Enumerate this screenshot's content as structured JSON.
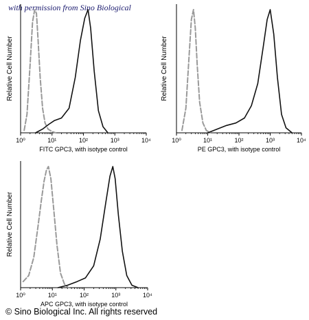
{
  "watermark": "with permission from Sino Biological",
  "copyright": "© Sino Biological Inc. All rights reserved",
  "chart_data": [
    {
      "type": "line",
      "ylabel": "Relative Cell Number",
      "xlabel": "FITC GPC3, with isotype control",
      "xscale": "log",
      "xlim": [
        1,
        10000
      ],
      "x_tick_labels": [
        "10⁰",
        "10¹",
        "10²",
        "10³",
        "10⁴"
      ],
      "series": [
        {
          "color": "#999999",
          "dash": "dashed",
          "x": [
            1.3,
            1.6,
            2.0,
            2.4,
            2.8,
            3.2,
            3.6,
            4.2,
            5.0,
            6.0,
            7.5,
            10,
            13
          ],
          "y": [
            0.02,
            0.15,
            0.55,
            0.9,
            1.0,
            0.97,
            0.75,
            0.45,
            0.2,
            0.08,
            0.03,
            0.01,
            0
          ]
        },
        {
          "color": "#111111",
          "dash": "solid",
          "x": [
            3,
            5,
            8,
            12,
            20,
            35,
            55,
            80,
            110,
            140,
            170,
            220,
            300,
            420,
            600
          ],
          "y": [
            0,
            0.03,
            0.07,
            0.1,
            0.12,
            0.2,
            0.45,
            0.75,
            0.93,
            1.0,
            0.85,
            0.5,
            0.18,
            0.05,
            0
          ]
        }
      ]
    },
    {
      "type": "line",
      "ylabel": "Relative Cell Number",
      "xlabel": "PE GPC3, with isotype control",
      "xscale": "log",
      "xlim": [
        1,
        10000
      ],
      "x_tick_labels": [
        "10⁰",
        "10¹",
        "10²",
        "10³",
        "10⁴"
      ],
      "series": [
        {
          "color": "#999999",
          "dash": "dashed",
          "x": [
            1.5,
            2.0,
            2.5,
            3.0,
            3.5,
            4.0,
            4.6,
            5.5,
            7.0,
            9.0,
            12
          ],
          "y": [
            0.02,
            0.2,
            0.6,
            0.92,
            1.0,
            0.85,
            0.55,
            0.25,
            0.08,
            0.02,
            0
          ]
        },
        {
          "color": "#111111",
          "dash": "solid",
          "x": [
            10,
            20,
            40,
            80,
            150,
            250,
            400,
            600,
            800,
            1000,
            1300,
            1700,
            2300,
            3200,
            5000
          ],
          "y": [
            0,
            0.03,
            0.06,
            0.08,
            0.12,
            0.22,
            0.4,
            0.7,
            0.92,
            1.0,
            0.8,
            0.45,
            0.15,
            0.04,
            0
          ]
        }
      ]
    },
    {
      "type": "line",
      "ylabel": "Relative Cell Number",
      "xlabel": "APC GPC3, with isotype control",
      "xscale": "log",
      "xlim": [
        1,
        10000
      ],
      "x_tick_labels": [
        "10⁰",
        "10¹",
        "10²",
        "10³",
        "10⁴"
      ],
      "series": [
        {
          "color": "#999999",
          "dash": "dashed",
          "x": [
            1.2,
            1.8,
            2.6,
            3.5,
            4.5,
            5.5,
            6.5,
            7.5,
            9,
            11,
            14,
            18,
            24,
            32
          ],
          "y": [
            0.05,
            0.1,
            0.25,
            0.5,
            0.72,
            0.88,
            0.97,
            1.0,
            0.9,
            0.65,
            0.35,
            0.12,
            0.03,
            0
          ]
        },
        {
          "color": "#111111",
          "dash": "solid",
          "x": [
            15,
            30,
            60,
            110,
            200,
            320,
            480,
            650,
            800,
            950,
            1200,
            1600,
            2200,
            3200,
            5000
          ],
          "y": [
            0,
            0.02,
            0.05,
            0.08,
            0.18,
            0.4,
            0.7,
            0.92,
            1.0,
            0.9,
            0.6,
            0.3,
            0.1,
            0.02,
            0
          ]
        }
      ]
    }
  ]
}
